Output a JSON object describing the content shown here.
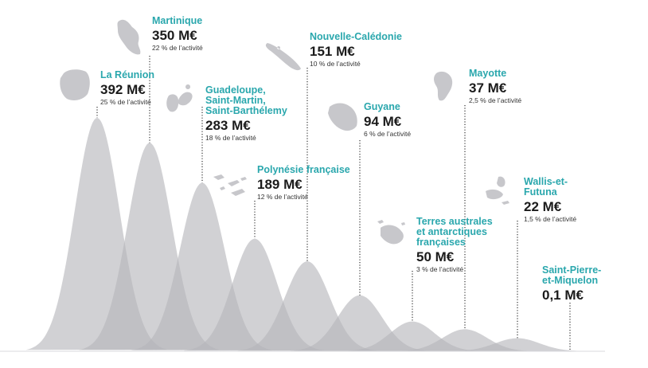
{
  "chart_data": {
    "type": "area",
    "title": "",
    "xlabel": "",
    "ylabel": "",
    "unit": "M€",
    "ylim": [
      0,
      392
    ],
    "territories": [
      {
        "id": "reunion",
        "name": "La Réunion",
        "value": 392,
        "value_label": "392 M€",
        "share_label": "25 % de l’activité",
        "icon": "reunion-island-icon"
      },
      {
        "id": "martinique",
        "name": "Martinique",
        "value": 350,
        "value_label": "350 M€",
        "share_label": "22 % de l’activité",
        "icon": "martinique-island-icon"
      },
      {
        "id": "guadeloupe",
        "name": "Guadeloupe, Saint-Martin, Saint-Barthélemy",
        "value": 283,
        "value_label": "283 M€",
        "share_label": "18 % de l’activité",
        "icon": "guadeloupe-island-icon"
      },
      {
        "id": "polynesie",
        "name": "Polynésie française",
        "value": 189,
        "value_label": "189 M€",
        "share_label": "12 % de l’activité",
        "icon": "polynesia-islands-icon"
      },
      {
        "id": "nouvelle-caledonie",
        "name": "Nouvelle-Calédonie",
        "value": 151,
        "value_label": "151 M€",
        "share_label": "10 % de l’activité",
        "icon": "new-caledonia-island-icon"
      },
      {
        "id": "guyane",
        "name": "Guyane",
        "value": 94,
        "value_label": "94 M€",
        "share_label": "6 % de l’activité",
        "icon": "guyane-map-icon"
      },
      {
        "id": "taaf",
        "name": "Terres australes et antarctiques françaises",
        "value": 50,
        "value_label": "50 M€",
        "share_label": "3 % de l’activité",
        "icon": "taaf-islands-icon"
      },
      {
        "id": "mayotte",
        "name": "Mayotte",
        "value": 37,
        "value_label": "37 M€",
        "share_label": "2,5 % de l’activité",
        "icon": "mayotte-island-icon"
      },
      {
        "id": "wallis",
        "name": "Wallis-et-Futuna",
        "value": 22,
        "value_label": "22 M€",
        "share_label": "1,5 % de l’activité",
        "icon": "wallis-futuna-islands-icon"
      },
      {
        "id": "spm",
        "name": "Saint-Pierre-et-Miquelon",
        "value": 0.1,
        "value_label": "0,1 M€",
        "share_label": "",
        "icon": ""
      }
    ]
  },
  "labels": {
    "reunion": {
      "name": "La Réunion",
      "value": "392 M€",
      "share": "25 % de l’activité"
    },
    "martinique": {
      "name": "Martinique",
      "value": "350 M€",
      "share": "22 % de l’activité"
    },
    "guadeloupe": {
      "name_lines": [
        "Guadeloupe,",
        "Saint-Martin,",
        "Saint-Barthélemy"
      ],
      "value": "283 M€",
      "share": "18 % de l’activité"
    },
    "polynesie": {
      "name": "Polynésie française",
      "value": "189 M€",
      "share": "12 % de l’activité"
    },
    "caledonie": {
      "name": "Nouvelle-Calédonie",
      "value": "151 M€",
      "share": "10 % de l’activité"
    },
    "guyane": {
      "name": "Guyane",
      "value": "94 M€",
      "share": "6 % de l’activité"
    },
    "taaf": {
      "name_lines": [
        "Terres australes",
        "et antarctiques",
        "françaises"
      ],
      "value": "50 M€",
      "share": "3 % de l’activité"
    },
    "mayotte": {
      "name": "Mayotte",
      "value": "37 M€",
      "share": "2,5 % de l’activité"
    },
    "wallis": {
      "name_lines": [
        "Wallis-et-",
        "Futuna"
      ],
      "value": "22 M€",
      "share": "1,5 % de l’activité"
    },
    "spm": {
      "name_lines": [
        "Saint-Pierre-",
        "et-Miquelon"
      ],
      "value": "0,1 M€"
    }
  },
  "colors": {
    "shape": "#b5b5ba",
    "accent": "#2aa7ad",
    "text": "#1b1b1b"
  }
}
